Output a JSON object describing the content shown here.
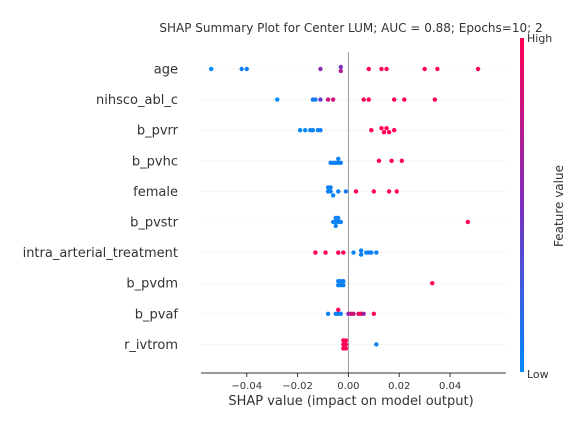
{
  "chart_data": {
    "type": "scatter",
    "title": "SHAP Summary Plot for Center LUM; AUC = 0.88; Epochs=10; 2",
    "xlabel": "SHAP value (impact on model output)",
    "xlim": [
      -0.058,
      0.062
    ],
    "xticks": [
      -0.04,
      -0.02,
      0.0,
      0.02,
      0.04
    ],
    "xtick_labels": [
      "−0.04",
      "−0.02",
      "0.00",
      "0.02",
      "0.04"
    ],
    "colorbar": {
      "label": "Feature value",
      "high": "High",
      "low": "Low",
      "low_color": "#008afb",
      "mid_color": "#7b2fbe",
      "high_color": "#ff0052"
    },
    "features": [
      {
        "name": "age",
        "points": [
          {
            "x": -0.054,
            "v": 0.0,
            "o": 0
          },
          {
            "x": -0.042,
            "v": 0.05,
            "o": 0
          },
          {
            "x": -0.04,
            "v": 0.05,
            "o": 0
          },
          {
            "x": -0.011,
            "v": 0.55,
            "o": 0
          },
          {
            "x": -0.003,
            "v": 0.5,
            "o": -1
          },
          {
            "x": -0.003,
            "v": 0.7,
            "o": 1
          },
          {
            "x": 0.008,
            "v": 1.0,
            "o": 0
          },
          {
            "x": 0.013,
            "v": 0.95,
            "o": 0
          },
          {
            "x": 0.015,
            "v": 1.0,
            "o": 0
          },
          {
            "x": 0.03,
            "v": 1.0,
            "o": 0
          },
          {
            "x": 0.035,
            "v": 1.0,
            "o": 0
          },
          {
            "x": 0.051,
            "v": 1.0,
            "o": 0
          }
        ]
      },
      {
        "name": "nihsco_abl_c",
        "points": [
          {
            "x": -0.028,
            "v": 0.0,
            "o": 0
          },
          {
            "x": -0.014,
            "v": 0.1,
            "o": 0
          },
          {
            "x": -0.013,
            "v": 0.1,
            "o": 0
          },
          {
            "x": -0.011,
            "v": 0.4,
            "o": 0
          },
          {
            "x": -0.008,
            "v": 0.8,
            "o": 0
          },
          {
            "x": -0.006,
            "v": 0.8,
            "o": 0
          },
          {
            "x": 0.006,
            "v": 0.95,
            "o": 0
          },
          {
            "x": 0.008,
            "v": 1.0,
            "o": 0
          },
          {
            "x": 0.018,
            "v": 1.0,
            "o": 0
          },
          {
            "x": 0.022,
            "v": 1.0,
            "o": 0
          },
          {
            "x": 0.034,
            "v": 1.0,
            "o": 0
          }
        ]
      },
      {
        "name": "b_pvrr",
        "points": [
          {
            "x": -0.019,
            "v": 0.0,
            "o": 0
          },
          {
            "x": -0.017,
            "v": 0.0,
            "o": 0
          },
          {
            "x": -0.015,
            "v": 0.05,
            "o": 0
          },
          {
            "x": -0.014,
            "v": 0.05,
            "o": 0
          },
          {
            "x": -0.012,
            "v": 0.05,
            "o": 0
          },
          {
            "x": -0.011,
            "v": 0.05,
            "o": 0
          },
          {
            "x": 0.009,
            "v": 1.0,
            "o": 0
          },
          {
            "x": 0.013,
            "v": 1.0,
            "o": -1
          },
          {
            "x": 0.014,
            "v": 1.0,
            "o": 1
          },
          {
            "x": 0.015,
            "v": 1.0,
            "o": -1
          },
          {
            "x": 0.016,
            "v": 1.0,
            "o": 1
          },
          {
            "x": 0.018,
            "v": 1.0,
            "o": 0
          }
        ]
      },
      {
        "name": "b_pvhc",
        "points": [
          {
            "x": -0.004,
            "v": 0.05,
            "o": -1
          },
          {
            "x": -0.007,
            "v": 0.05,
            "o": 1
          },
          {
            "x": -0.006,
            "v": 0.05,
            "o": 1
          },
          {
            "x": -0.005,
            "v": 0.05,
            "o": 1
          },
          {
            "x": -0.004,
            "v": 0.05,
            "o": 1
          },
          {
            "x": -0.003,
            "v": 0.05,
            "o": 1
          },
          {
            "x": 0.012,
            "v": 1.0,
            "o": 0
          },
          {
            "x": 0.017,
            "v": 1.0,
            "o": 0
          },
          {
            "x": 0.021,
            "v": 1.0,
            "o": 0
          }
        ]
      },
      {
        "name": "female",
        "points": [
          {
            "x": -0.008,
            "v": 0.05,
            "o": -2
          },
          {
            "x": -0.007,
            "v": 0.05,
            "o": -2
          },
          {
            "x": -0.008,
            "v": 0.05,
            "o": 0
          },
          {
            "x": -0.007,
            "v": 0.05,
            "o": 0
          },
          {
            "x": -0.004,
            "v": 0.05,
            "o": 0
          },
          {
            "x": -0.006,
            "v": 0.05,
            "o": 2
          },
          {
            "x": -0.001,
            "v": 0.1,
            "o": 0
          },
          {
            "x": 0.003,
            "v": 1.0,
            "o": 0
          },
          {
            "x": 0.01,
            "v": 1.0,
            "o": 0
          },
          {
            "x": 0.016,
            "v": 1.0,
            "o": 0
          },
          {
            "x": 0.019,
            "v": 1.0,
            "o": 0
          }
        ]
      },
      {
        "name": "b_pvstr",
        "points": [
          {
            "x": -0.005,
            "v": 0.05,
            "o": -2
          },
          {
            "x": -0.004,
            "v": 0.05,
            "o": -2
          },
          {
            "x": -0.006,
            "v": 0.05,
            "o": 0
          },
          {
            "x": -0.005,
            "v": 0.05,
            "o": 0
          },
          {
            "x": -0.004,
            "v": 0.05,
            "o": 0
          },
          {
            "x": -0.003,
            "v": 0.05,
            "o": 0
          },
          {
            "x": -0.005,
            "v": 0.05,
            "o": 2
          },
          {
            "x": 0.047,
            "v": 1.0,
            "o": 0
          }
        ]
      },
      {
        "name": "intra_arterial_treatment",
        "points": [
          {
            "x": -0.013,
            "v": 1.0,
            "o": 0
          },
          {
            "x": -0.009,
            "v": 1.0,
            "o": 0
          },
          {
            "x": -0.004,
            "v": 1.0,
            "o": 0
          },
          {
            "x": -0.002,
            "v": 1.0,
            "o": 0
          },
          {
            "x": 0.002,
            "v": 0.05,
            "o": 0
          },
          {
            "x": 0.005,
            "v": 0.05,
            "o": -1
          },
          {
            "x": 0.005,
            "v": 0.05,
            "o": 1
          },
          {
            "x": 0.007,
            "v": 0.05,
            "o": 0
          },
          {
            "x": 0.008,
            "v": 0.05,
            "o": 0
          },
          {
            "x": 0.009,
            "v": 0.05,
            "o": 0
          },
          {
            "x": 0.011,
            "v": 0.05,
            "o": 0
          }
        ]
      },
      {
        "name": "b_pvdm",
        "points": [
          {
            "x": -0.004,
            "v": 0.05,
            "o": -1
          },
          {
            "x": -0.003,
            "v": 0.05,
            "o": -1
          },
          {
            "x": -0.002,
            "v": 0.05,
            "o": -1
          },
          {
            "x": -0.004,
            "v": 0.05,
            "o": 1
          },
          {
            "x": -0.003,
            "v": 0.05,
            "o": 1
          },
          {
            "x": -0.002,
            "v": 0.05,
            "o": 1
          },
          {
            "x": 0.033,
            "v": 1.0,
            "o": 0
          }
        ]
      },
      {
        "name": "b_pvaf",
        "points": [
          {
            "x": -0.004,
            "v": 1.0,
            "o": -2
          },
          {
            "x": -0.008,
            "v": 0.05,
            "o": 0
          },
          {
            "x": -0.005,
            "v": 0.05,
            "o": 0
          },
          {
            "x": -0.004,
            "v": 0.05,
            "o": 0
          },
          {
            "x": -0.003,
            "v": 0.05,
            "o": 0
          },
          {
            "x": 0.0,
            "v": 0.6,
            "o": 0
          },
          {
            "x": 0.001,
            "v": 0.8,
            "o": 0
          },
          {
            "x": 0.002,
            "v": 0.8,
            "o": 0
          },
          {
            "x": 0.004,
            "v": 0.9,
            "o": 0
          },
          {
            "x": 0.005,
            "v": 1.0,
            "o": 0
          },
          {
            "x": 0.006,
            "v": 0.6,
            "o": 0
          },
          {
            "x": 0.01,
            "v": 1.0,
            "o": 0
          }
        ]
      },
      {
        "name": "r_ivtrom",
        "points": [
          {
            "x": -0.002,
            "v": 1.0,
            "o": -2
          },
          {
            "x": -0.001,
            "v": 1.0,
            "o": -2
          },
          {
            "x": -0.002,
            "v": 1.0,
            "o": 0
          },
          {
            "x": -0.001,
            "v": 1.0,
            "o": 0
          },
          {
            "x": -0.002,
            "v": 1.0,
            "o": 2
          },
          {
            "x": -0.001,
            "v": 1.0,
            "o": 2
          },
          {
            "x": 0.011,
            "v": 0.05,
            "o": 0
          }
        ]
      }
    ]
  }
}
